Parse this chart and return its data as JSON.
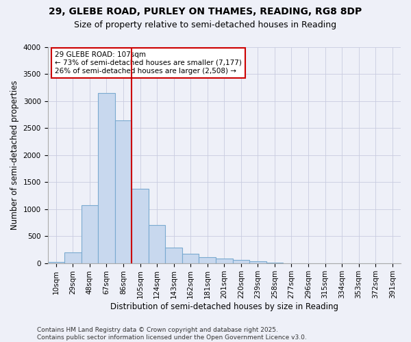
{
  "title_line1": "29, GLEBE ROAD, PURLEY ON THAMES, READING, RG8 8DP",
  "title_line2": "Size of property relative to semi-detached houses in Reading",
  "xlabel": "Distribution of semi-detached houses by size in Reading",
  "ylabel": "Number of semi-detached properties",
  "bar_color": "#c8d8ee",
  "bar_edge_color": "#7aaad0",
  "bar_categories": [
    "10sqm",
    "29sqm",
    "48sqm",
    "67sqm",
    "86sqm",
    "105sqm",
    "124sqm",
    "143sqm",
    "162sqm",
    "181sqm",
    "201sqm",
    "220sqm",
    "239sqm",
    "258sqm",
    "277sqm",
    "296sqm",
    "315sqm",
    "334sqm",
    "353sqm",
    "372sqm",
    "391sqm"
  ],
  "bar_values": [
    15,
    200,
    1070,
    3150,
    2650,
    1380,
    700,
    290,
    175,
    110,
    80,
    55,
    30,
    5,
    0,
    0,
    0,
    0,
    0,
    0,
    0
  ],
  "vline_x_index": 5,
  "annotation_text": "29 GLEBE ROAD: 107sqm\n← 73% of semi-detached houses are smaller (7,177)\n26% of semi-detached houses are larger (2,508) →",
  "annotation_box_color": "#ffffff",
  "annotation_box_edge_color": "#cc0000",
  "vline_color": "#cc0000",
  "ylim": [
    0,
    4000
  ],
  "yticks": [
    0,
    500,
    1000,
    1500,
    2000,
    2500,
    3000,
    3500,
    4000
  ],
  "grid_color": "#c8cce0",
  "background_color": "#eef0f8",
  "footer_text": "Contains HM Land Registry data © Crown copyright and database right 2025.\nContains public sector information licensed under the Open Government Licence v3.0.",
  "title_fontsize": 10,
  "subtitle_fontsize": 9,
  "axis_label_fontsize": 8.5,
  "tick_fontsize": 7.5,
  "annotation_fontsize": 7.5,
  "footer_fontsize": 6.5
}
